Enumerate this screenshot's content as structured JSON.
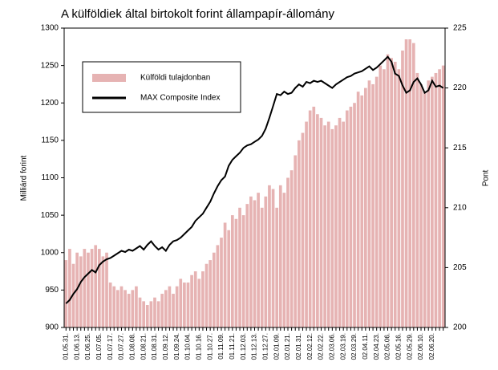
{
  "chart_data": {
    "type": "bar-line",
    "title": "A külföldiek által birtokolt forint állampapír-állomány",
    "y_label": "Milliárd forint",
    "y2_label": "Pont",
    "categories": [
      "01.05.31.",
      null,
      null,
      "01.06.13.",
      null,
      null,
      "01.06.25.",
      null,
      null,
      "01.07.05.",
      null,
      null,
      "01.07.17.",
      null,
      null,
      "01.07.27.",
      null,
      null,
      "01.08.08.",
      null,
      null,
      "01.08.21.",
      null,
      null,
      "01.08.31.",
      null,
      null,
      "01.09.12.",
      null,
      null,
      "01.09.24.",
      null,
      null,
      "01.10.04.",
      null,
      null,
      "01.10.16.",
      null,
      null,
      "01.10.27.",
      null,
      null,
      "01.11.09.",
      null,
      null,
      "01.11.21.",
      null,
      null,
      "01.12.03.",
      null,
      null,
      "01.12.13.",
      null,
      null,
      "01.12.27.",
      null,
      null,
      "02.01.09.",
      null,
      null,
      "02.01.21.",
      null,
      null,
      "02.01.31.",
      null,
      null,
      "02.02.12.",
      null,
      null,
      "02.02.22.",
      null,
      null,
      "02.03.06.",
      null,
      null,
      "02.03.19.",
      null,
      null,
      "02.03.29.",
      null,
      null,
      "02.04.11.",
      null,
      null,
      "02.04.23.",
      null,
      null,
      "02.05.06.",
      null,
      null,
      "02.05.16.",
      null,
      null,
      "02.05.29.",
      null,
      null,
      "02.06.10.",
      null,
      null,
      "02.06.20.",
      null,
      null,
      null
    ],
    "series": [
      {
        "name": "Külföldi tulajdonban",
        "type": "bar",
        "color": "#e6b3b3",
        "values": [
          990,
          1005,
          985,
          1000,
          995,
          1005,
          1000,
          1005,
          1010,
          1005,
          995,
          1000,
          960,
          955,
          950,
          955,
          950,
          945,
          950,
          955,
          940,
          935,
          930,
          935,
          940,
          935,
          945,
          950,
          955,
          945,
          955,
          965,
          960,
          960,
          970,
          975,
          965,
          975,
          985,
          990,
          1000,
          1010,
          1020,
          1040,
          1030,
          1050,
          1045,
          1060,
          1050,
          1065,
          1075,
          1070,
          1080,
          1060,
          1075,
          1090,
          1085,
          1060,
          1090,
          1080,
          1100,
          1110,
          1130,
          1150,
          1160,
          1175,
          1190,
          1195,
          1185,
          1180,
          1170,
          1175,
          1165,
          1170,
          1180,
          1175,
          1190,
          1195,
          1200,
          1215,
          1210,
          1220,
          1230,
          1225,
          1235,
          1250,
          1245,
          1265,
          1260,
          1255,
          1245,
          1270,
          1285,
          1285,
          1280,
          1240,
          1225,
          1215,
          1230,
          1235,
          1240,
          1245,
          1250
        ]
      },
      {
        "name": "MAX Composite Index",
        "type": "line",
        "axis": "y2",
        "color": "#000000",
        "values": [
          202,
          202.3,
          202.8,
          203.2,
          203.8,
          204.2,
          204.5,
          204.8,
          204.6,
          205.2,
          205.5,
          205.7,
          205.8,
          206,
          206.2,
          206.4,
          206.3,
          206.5,
          206.4,
          206.6,
          206.8,
          206.5,
          206.9,
          207.2,
          206.8,
          206.5,
          206.7,
          206.4,
          206.9,
          207.2,
          207.3,
          207.5,
          207.8,
          208.1,
          208.4,
          208.9,
          209.2,
          209.5,
          210,
          210.5,
          211.2,
          211.8,
          212.3,
          212.6,
          213.5,
          214,
          214.3,
          214.6,
          215,
          215.2,
          215.3,
          215.5,
          215.7,
          216,
          216.6,
          217.5,
          218.5,
          219.5,
          219.4,
          219.7,
          219.5,
          219.6,
          220,
          220.3,
          220.1,
          220.5,
          220.4,
          220.6,
          220.5,
          220.6,
          220.4,
          220.2,
          220,
          220.3,
          220.5,
          220.7,
          220.9,
          221,
          221.2,
          221.3,
          221.4,
          221.6,
          221.8,
          221.5,
          221.7,
          222,
          222.3,
          222.6,
          222.2,
          221.2,
          221,
          220.2,
          219.6,
          219.8,
          220.5,
          220.8,
          220.3,
          219.6,
          219.8,
          220.6,
          220.1,
          220.2,
          220
        ]
      }
    ],
    "ylim": [
      900,
      1300
    ],
    "yticks": [
      900,
      950,
      1000,
      1050,
      1100,
      1150,
      1200,
      1250,
      1300
    ],
    "y2lim": [
      200,
      225
    ],
    "y2ticks": [
      200,
      205,
      210,
      215,
      220,
      225
    ],
    "legend": "upper left"
  }
}
